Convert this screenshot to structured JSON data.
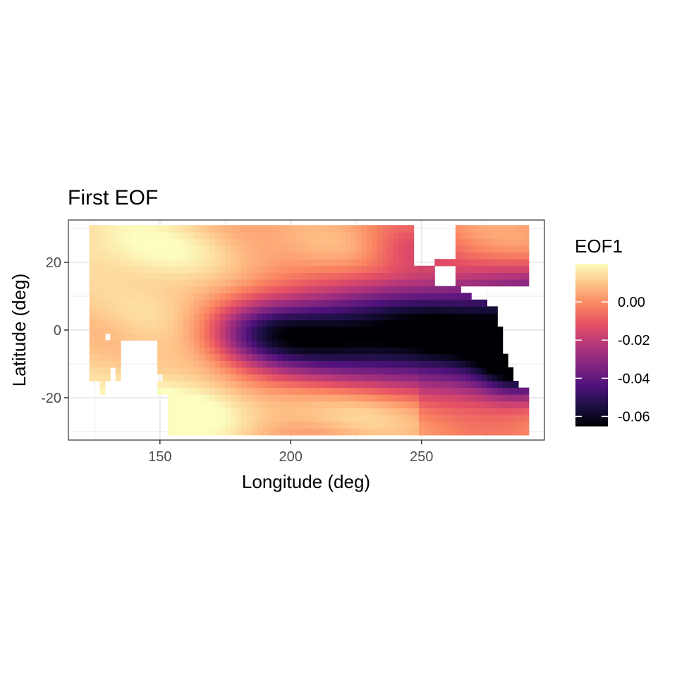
{
  "chart_data": {
    "type": "heatmap",
    "title": "First EOF",
    "xlabel": "Longitude (deg)",
    "ylabel": "Latitude (deg)",
    "xlim": [
      115,
      297
    ],
    "ylim": [
      -32.5,
      32.5
    ],
    "x_ticks": [
      150,
      200,
      250
    ],
    "y_ticks": [
      -20,
      0,
      20
    ],
    "grid": true,
    "cell_size_deg": 2,
    "legend": {
      "title": "EOF1",
      "position": "right",
      "ticks": [
        0.0,
        -0.02,
        -0.04,
        -0.06
      ],
      "tick_labels": [
        "0.00",
        "-0.02",
        "-0.04",
        "-0.06"
      ],
      "range": [
        -0.065,
        0.02
      ]
    },
    "colorscale": [
      "#000004",
      "#1c1044",
      "#4f127b",
      "#812581",
      "#b5367a",
      "#e55064",
      "#fb8761",
      "#fec287",
      "#fcfdbf"
    ],
    "domain": {
      "lon_range": [
        124,
        290
      ],
      "lat_range": [
        -30,
        30
      ]
    },
    "field_description": {
      "equatorial_minimum": {
        "lon": 250,
        "lat": -1,
        "value": -0.063
      },
      "coastal_minimum": {
        "lon": 280,
        "lat": -8,
        "value": -0.065
      },
      "subtropical_maximum": {
        "value": 0.018
      }
    }
  }
}
